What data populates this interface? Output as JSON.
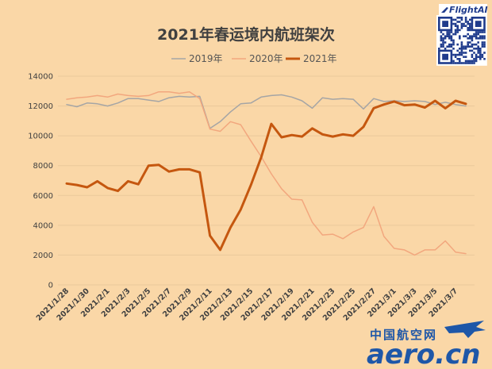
{
  "chart_data": {
    "type": "line",
    "title": "2021年春运境内航班架次",
    "ylim": [
      0,
      14000
    ],
    "yticks": [
      0,
      2000,
      4000,
      6000,
      8000,
      10000,
      12000,
      14000
    ],
    "x": [
      "2021/1/28",
      "2021/1/29",
      "2021/1/30",
      "2021/1/31",
      "2021/2/1",
      "2021/2/2",
      "2021/2/3",
      "2021/2/4",
      "2021/2/5",
      "2021/2/6",
      "2021/2/7",
      "2021/2/8",
      "2021/2/9",
      "2021/2/10",
      "2021/2/11",
      "2021/2/12",
      "2021/2/13",
      "2021/2/14",
      "2021/2/15",
      "2021/2/16",
      "2021/2/17",
      "2021/2/18",
      "2021/2/19",
      "2021/2/20",
      "2021/2/21",
      "2021/2/22",
      "2021/2/23",
      "2021/2/24",
      "2021/2/25",
      "2021/2/26",
      "2021/2/27",
      "2021/2/28",
      "2021/3/1",
      "2021/3/2",
      "2021/3/3",
      "2021/3/4",
      "2021/3/5",
      "2021/3/6",
      "2021/3/7",
      "2021/3/8"
    ],
    "xtick_labels": [
      "2021/1/28",
      "2021/1/30",
      "2021/2/1",
      "2021/2/3",
      "2021/2/5",
      "2021/2/7",
      "2021/2/9",
      "2021/2/11",
      "2021/2/13",
      "2021/2/15",
      "2021/2/17",
      "2021/2/19",
      "2021/2/21",
      "2021/2/23",
      "2021/2/25",
      "2021/2/27",
      "2021/3/1",
      "2021/3/3",
      "2021/3/5",
      "2021/3/7"
    ],
    "legend_position": "top-center",
    "grid": true,
    "series": [
      {
        "name": "2019年",
        "color": "#A5A5A5",
        "values": [
          12100,
          11950,
          12200,
          12150,
          12000,
          12200,
          12500,
          12500,
          12400,
          12300,
          12550,
          12650,
          12600,
          12650,
          10500,
          10950,
          11600,
          12150,
          12200,
          12600,
          12700,
          12750,
          12600,
          12350,
          11850,
          12550,
          12450,
          12500,
          12450,
          11800,
          12500,
          12300,
          12350,
          12300,
          12350,
          12300,
          12100,
          12250,
          12100,
          12000
        ]
      },
      {
        "name": "2020年",
        "color": "#F2A77E",
        "values": [
          12450,
          12550,
          12600,
          12700,
          12600,
          12800,
          12700,
          12650,
          12700,
          12950,
          12950,
          12850,
          12950,
          12500,
          10450,
          10300,
          10950,
          10750,
          9650,
          8600,
          7450,
          6450,
          5750,
          5700,
          4200,
          3350,
          3400,
          3100,
          3550,
          3850,
          5250,
          3250,
          2450,
          2350,
          2000,
          2350,
          2350,
          2950,
          2200,
          2100
        ]
      },
      {
        "name": "2021年",
        "color": "#C5570F",
        "values": [
          6800,
          6700,
          6550,
          6950,
          6500,
          6300,
          6950,
          6750,
          8000,
          8050,
          7600,
          7750,
          7750,
          7550,
          3300,
          2350,
          3850,
          5050,
          6700,
          8550,
          10800,
          9900,
          10050,
          9950,
          10500,
          10100,
          9950,
          10100,
          10000,
          10600,
          11850,
          12100,
          12300,
          12050,
          12100,
          11900,
          12350,
          11850,
          12350,
          12150
        ]
      }
    ]
  },
  "branding": {
    "top_logo": "FlightAI",
    "bottom_logo_zh": "中国航空网",
    "bottom_logo_en": "aero.cn"
  }
}
